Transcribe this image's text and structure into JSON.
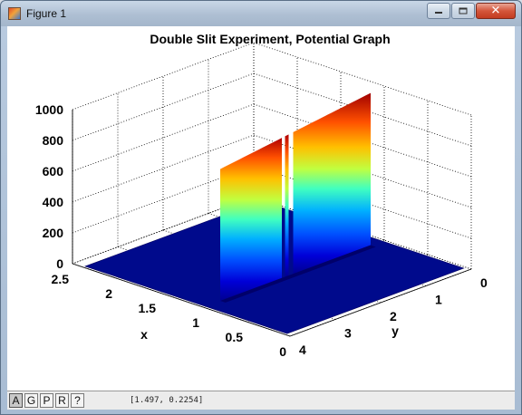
{
  "window": {
    "title": "Figure 1",
    "close_symbol": "✕"
  },
  "toolbar": {
    "buttons": [
      "A",
      "G",
      "P",
      "R",
      "?"
    ],
    "active_index": 0
  },
  "status": {
    "coordinates": "[1.497, 0.2254]"
  },
  "chart_data": {
    "type": "surface",
    "title": "Double Slit Experiment, Potential Graph",
    "xlabel": "x",
    "ylabel": "y",
    "zlabel": "",
    "x_ticks": [
      "2.5",
      "2",
      "1.5",
      "1",
      "0.5",
      "0"
    ],
    "y_ticks": [
      "4",
      "3",
      "2",
      "1",
      "0"
    ],
    "z_ticks": [
      "1000",
      "800",
      "600",
      "400",
      "200",
      "0"
    ],
    "xlim": [
      0,
      2.5
    ],
    "ylim": [
      0,
      4
    ],
    "zlim": [
      0,
      1000
    ],
    "colormap": "jet",
    "grid": true,
    "barrier": {
      "x": 1.0,
      "y_range": [
        0,
        4
      ],
      "height_left": 840,
      "height_right": 1000,
      "slits_y": [
        2.05,
        2.2
      ]
    }
  }
}
